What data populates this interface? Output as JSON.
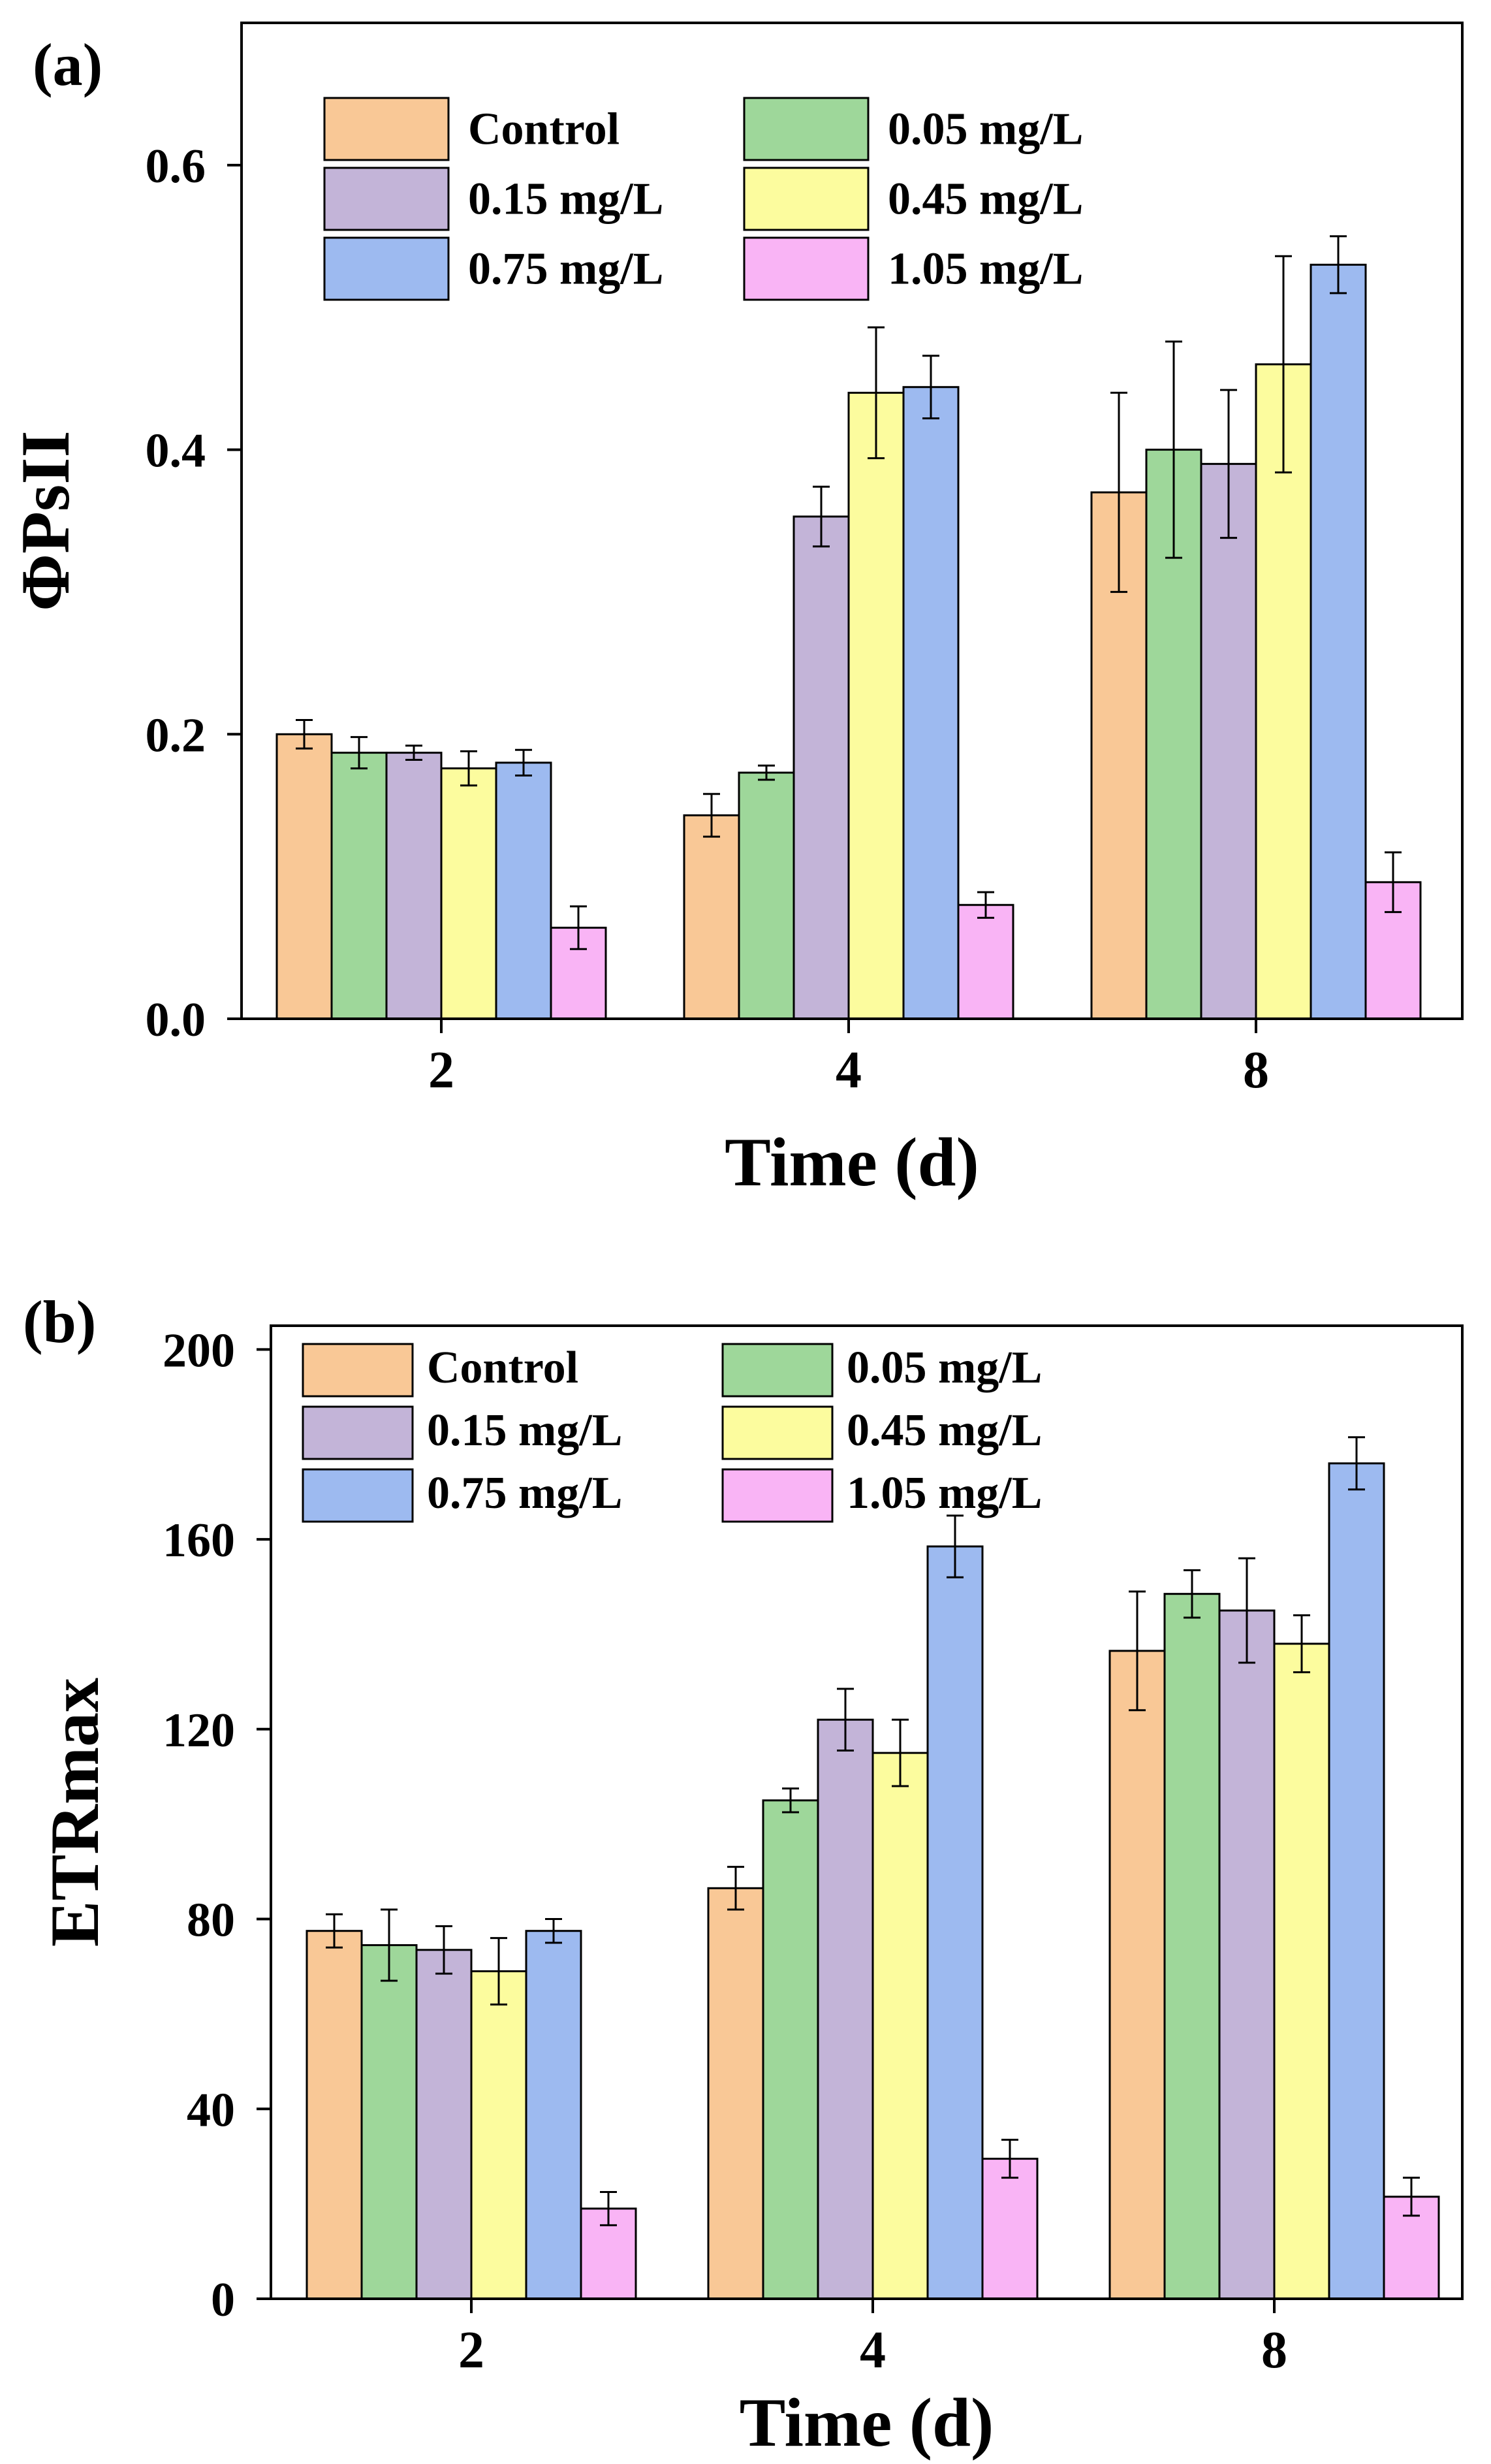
{
  "chart_data": [
    {
      "id": "a",
      "panel_label": "(a)",
      "type": "bar",
      "title": "",
      "xlabel": "Time (d)",
      "ylabel": "ΦPsII",
      "categories": [
        "2",
        "4",
        "8"
      ],
      "ylim": [
        0,
        0.7
      ],
      "yticks": [
        0.0,
        0.2,
        0.4,
        0.6
      ],
      "ytick_labels": [
        "0.0",
        "0.2",
        "0.4",
        "0.6"
      ],
      "grid": false,
      "legend_position": "top-left",
      "series": [
        {
          "name": "Control",
          "color": "#F9C896",
          "values": [
            0.2,
            0.143,
            0.37
          ],
          "errors": [
            0.01,
            0.015,
            0.07
          ]
        },
        {
          "name": "0.05 mg/L",
          "color": "#9ED79A",
          "values": [
            0.187,
            0.173,
            0.4
          ],
          "errors": [
            0.011,
            0.005,
            0.076
          ]
        },
        {
          "name": "0.15 mg/L",
          "color": "#C3B4D8",
          "values": [
            0.187,
            0.353,
            0.39
          ],
          "errors": [
            0.005,
            0.021,
            0.052
          ]
        },
        {
          "name": "0.45 mg/L",
          "color": "#FCFC9E",
          "values": [
            0.176,
            0.44,
            0.46
          ],
          "errors": [
            0.012,
            0.046,
            0.076
          ]
        },
        {
          "name": "0.75 mg/L",
          "color": "#9DBAF0",
          "values": [
            0.18,
            0.444,
            0.53
          ],
          "errors": [
            0.009,
            0.022,
            0.02
          ]
        },
        {
          "name": "1.05 mg/L",
          "color": "#F9B4F5",
          "values": [
            0.064,
            0.08,
            0.096
          ],
          "errors": [
            0.015,
            0.009,
            0.021
          ]
        }
      ]
    },
    {
      "id": "b",
      "panel_label": "(b)",
      "type": "bar",
      "title": "",
      "xlabel": "Time (d)",
      "ylabel": "ETRmax",
      "categories": [
        "2",
        "4",
        "8"
      ],
      "ylim": [
        0,
        205
      ],
      "yticks": [
        0,
        40,
        80,
        120,
        160,
        200
      ],
      "ytick_labels": [
        "0",
        "40",
        "80",
        "120",
        "160",
        "200"
      ],
      "grid": false,
      "legend_position": "top-left",
      "series": [
        {
          "name": "Control",
          "color": "#F9C896",
          "values": [
            77.5,
            86.5,
            136.5
          ],
          "errors": [
            3.5,
            4.5,
            12.5
          ]
        },
        {
          "name": "0.05 mg/L",
          "color": "#9ED79A",
          "values": [
            74.5,
            105.0,
            148.5
          ],
          "errors": [
            7.5,
            2.5,
            5.0
          ]
        },
        {
          "name": "0.15 mg/L",
          "color": "#C3B4D8",
          "values": [
            73.5,
            122.0,
            145.0
          ],
          "errors": [
            5.0,
            6.5,
            11.0
          ]
        },
        {
          "name": "0.45 mg/L",
          "color": "#FCFC9E",
          "values": [
            69.0,
            115.0,
            138.0
          ],
          "errors": [
            7.0,
            7.0,
            6.0
          ]
        },
        {
          "name": "0.75 mg/L",
          "color": "#9DBAF0",
          "values": [
            77.5,
            158.5,
            176.0
          ],
          "errors": [
            2.5,
            6.5,
            5.5
          ]
        },
        {
          "name": "1.05 mg/L",
          "color": "#F9B4F5",
          "values": [
            19.0,
            29.5,
            21.5
          ],
          "errors": [
            3.5,
            4.0,
            4.0
          ]
        }
      ]
    }
  ]
}
